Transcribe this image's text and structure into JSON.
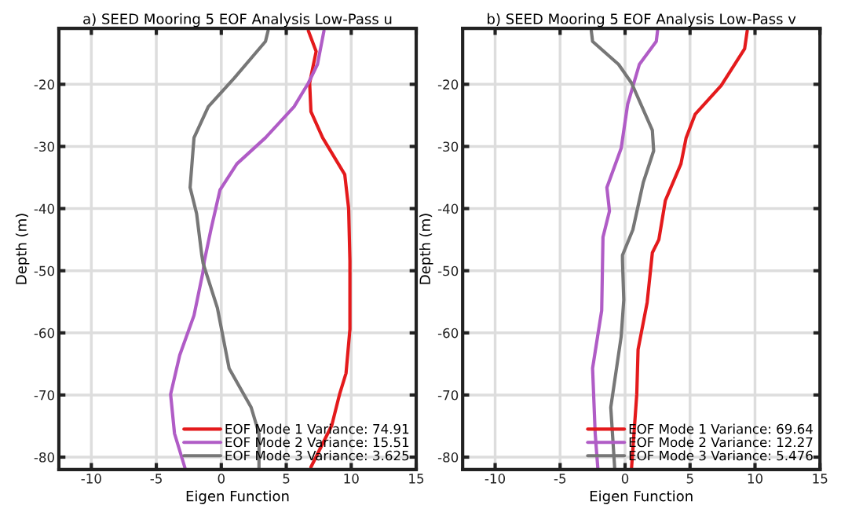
{
  "chart_data": [
    {
      "type": "line",
      "title": "a) SEED Mooring 5 EOF Analysis Low-Pass u",
      "xlabel": "Eigen Function",
      "ylabel": "Depth (m)",
      "xlim": [
        -12.5,
        15
      ],
      "xticks": [
        -10,
        -5,
        0,
        5,
        10,
        15
      ],
      "ylim": [
        -82,
        -11
      ],
      "yticks": [
        -80,
        -70,
        -60,
        -50,
        -40,
        -30,
        -20
      ],
      "grid": true,
      "legend": "bottom right",
      "series": [
        {
          "name": "EOF Mode 1 Variance: 74.91",
          "color": "#e41a1c",
          "x": [
            6.7,
            7.3,
            6.8,
            6.9,
            7.8,
            9.5,
            9.8,
            9.9,
            9.9,
            9.6,
            9.1,
            8.5,
            6.9
          ],
          "values": [
            -11.4,
            -14.7,
            -19.8,
            -24.4,
            -28.6,
            -34.5,
            -40,
            -48.4,
            -59.4,
            -66.5,
            -69.9,
            -74.9,
            -81.6
          ]
        },
        {
          "name": "EOF Mode 2 Variance: 15.51",
          "color": "#b05cc6",
          "x": [
            7.9,
            7.4,
            6.7,
            5.6,
            3.4,
            1.2,
            -0.1,
            -0.8,
            -1.3,
            -1.4,
            -2.1,
            -3.2,
            -3.9,
            -3.6,
            -2.8
          ],
          "values": [
            -11.4,
            -16.8,
            -19.8,
            -23.6,
            -28.6,
            -32.8,
            -37.0,
            -43.4,
            -48.4,
            -50.1,
            -57.2,
            -63.6,
            -69.9,
            -76.2,
            -81.7
          ]
        },
        {
          "name": "EOF Mode 3 Variance: 3.625",
          "color": "#777777",
          "x": [
            3.6,
            3.4,
            1.0,
            -1.0,
            -2.1,
            -2.4,
            -1.9,
            -1.5,
            -1.4,
            -0.3,
            0.6,
            2.3,
            2.9,
            2.9
          ],
          "values": [
            -11.4,
            -13.1,
            -19.0,
            -23.6,
            -28.6,
            -36.6,
            -40.8,
            -47.5,
            -48.8,
            -56.0,
            -65.7,
            -72.0,
            -76.2,
            -81.7
          ]
        }
      ]
    },
    {
      "type": "line",
      "title": "b) SEED Mooring 5 EOF Analysis Low-Pass v",
      "xlabel": "Eigen Function",
      "ylabel": "Depth (m)",
      "xlim": [
        -12.5,
        15
      ],
      "xticks": [
        -10,
        -5,
        0,
        5,
        10,
        15
      ],
      "ylim": [
        -82,
        -11
      ],
      "yticks": [
        -80,
        -70,
        -60,
        -50,
        -40,
        -30,
        -20
      ],
      "grid": true,
      "legend": "bottom right",
      "series": [
        {
          "name": "EOF Mode 1 Variance: 69.64",
          "color": "#e41a1c",
          "x": [
            9.4,
            9.2,
            7.4,
            5.4,
            4.7,
            4.3,
            3.1,
            2.6,
            2.1,
            1.7,
            1.0,
            0.9,
            0.5
          ],
          "values": [
            -11.4,
            -14.3,
            -20.2,
            -24.8,
            -28.6,
            -32.8,
            -38.7,
            -45.0,
            -47.1,
            -55.1,
            -62.7,
            -69.9,
            -81.7
          ]
        },
        {
          "name": "EOF Mode 2 Variance: 12.27",
          "color": "#b05cc6",
          "x": [
            2.5,
            2.4,
            1.1,
            0.2,
            -0.3,
            -1.4,
            -1.2,
            -1.7,
            -1.8,
            -2.5,
            -2.3,
            -2.1
          ],
          "values": [
            -11.4,
            -13.1,
            -16.8,
            -23.2,
            -30.3,
            -36.6,
            -40.4,
            -44.6,
            -56.4,
            -65.7,
            -76.2,
            -81.7
          ]
        },
        {
          "name": "EOF Mode 3 Variance: 5.476",
          "color": "#777777",
          "x": [
            -2.6,
            -2.5,
            -0.5,
            0.5,
            1.3,
            2.1,
            2.2,
            1.4,
            0.6,
            -0.2,
            -0.2,
            -0.1,
            -0.3,
            -1.1,
            -0.8
          ],
          "values": [
            -11.4,
            -13.1,
            -16.8,
            -19.8,
            -23.6,
            -27.4,
            -30.7,
            -35.8,
            -43.4,
            -47.5,
            -48.4,
            -54.7,
            -60.6,
            -72.0,
            -81.7
          ]
        }
      ]
    }
  ]
}
